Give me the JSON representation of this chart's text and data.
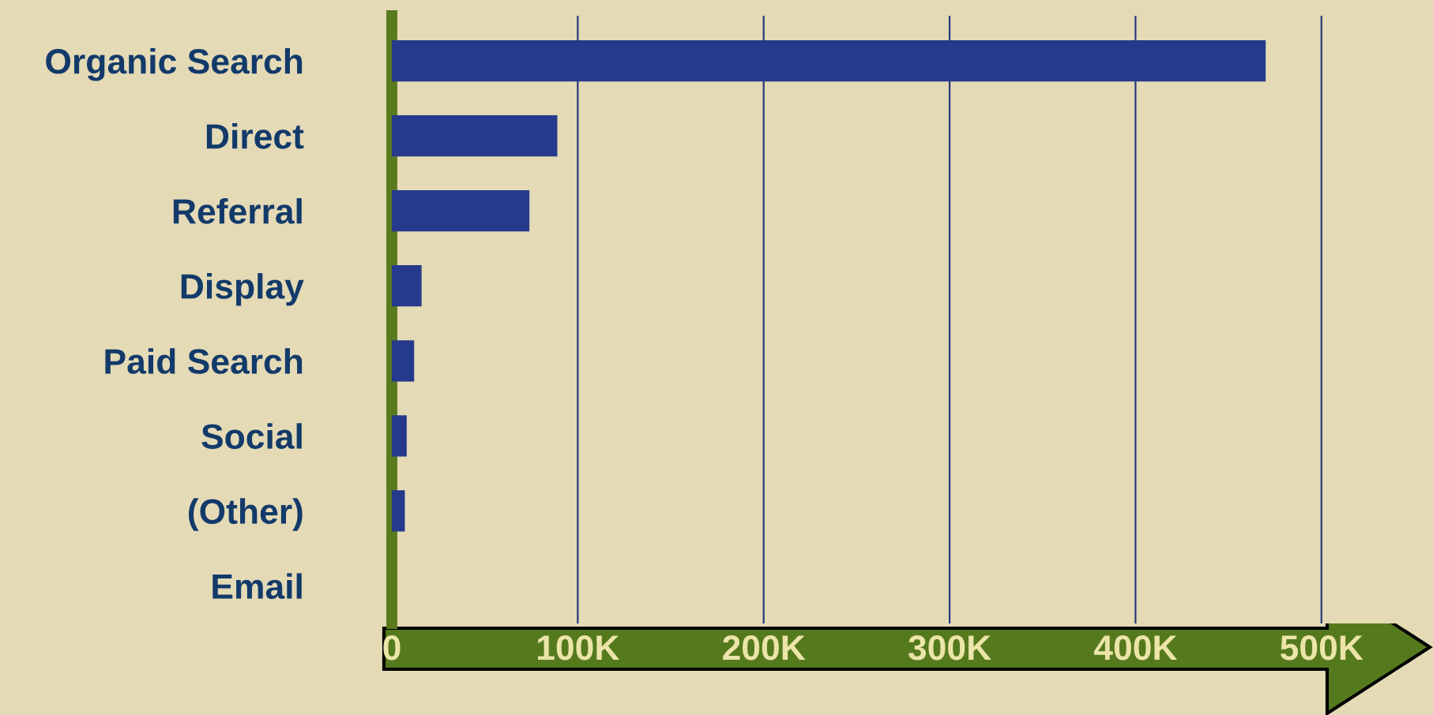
{
  "chart_data": {
    "type": "bar",
    "orientation": "horizontal",
    "categories": [
      "Organic Search",
      "Direct",
      "Referral",
      "Display",
      "Paid Search",
      "Social",
      "(Other)",
      "Email"
    ],
    "values": [
      470000,
      89000,
      74000,
      16000,
      12000,
      8000,
      7000,
      0
    ],
    "color": "#253a8c",
    "xlim": [
      0,
      560000
    ],
    "xticks": [
      {
        "value": 0,
        "label": "0"
      },
      {
        "value": 100000,
        "label": "100K"
      },
      {
        "value": 200000,
        "label": "200K"
      },
      {
        "value": 300000,
        "label": "300K"
      },
      {
        "value": 400000,
        "label": "400K"
      },
      {
        "value": 500000,
        "label": "500K"
      }
    ],
    "grid": "x"
  }
}
